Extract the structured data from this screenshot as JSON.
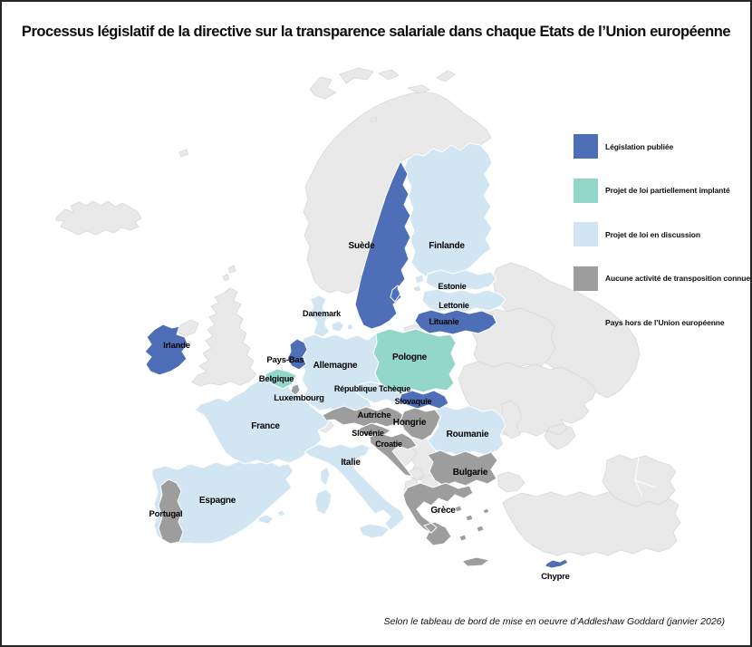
{
  "title": "Processus législatif de la directive sur la transparence salariale dans chaque Etats de l’Union européenne",
  "legend": {
    "items": [
      {
        "status": "published",
        "label": "Législation publiée",
        "color": "#4e6fb7"
      },
      {
        "status": "partial",
        "label": "Projet de loi partiellement implanté",
        "color": "#93d6ca"
      },
      {
        "status": "discussion",
        "label": "Projet de loi en discussion",
        "color": "#d2e5f3"
      },
      {
        "status": "none",
        "label": "Aucune activité de transposition connue",
        "color": "#9d9d9d"
      },
      {
        "status": "non_eu",
        "label": "Pays hors de l’Union européenne",
        "color": "#e9e9e9"
      }
    ]
  },
  "map": {
    "countries": [
      {
        "id": "espagne",
        "label": "Espagne",
        "status": "discussion"
      },
      {
        "id": "france",
        "label": "France",
        "status": "discussion"
      },
      {
        "id": "allemagne",
        "label": "Allemagne",
        "status": "discussion"
      },
      {
        "id": "italie",
        "label": "Italie",
        "status": "discussion"
      },
      {
        "id": "finlande",
        "label": "Finlande",
        "status": "discussion"
      },
      {
        "id": "danemark",
        "label": "Danemark",
        "status": "discussion"
      },
      {
        "id": "estonie",
        "label": "Estonie",
        "status": "discussion"
      },
      {
        "id": "lettonie",
        "label": "Lettonie",
        "status": "discussion"
      },
      {
        "id": "tcheque",
        "label": "République Tchèque",
        "status": "discussion"
      },
      {
        "id": "roumanie",
        "label": "Roumanie",
        "status": "discussion"
      },
      {
        "id": "pologne",
        "label": "Pologne",
        "status": "partial"
      },
      {
        "id": "belgique",
        "label": "Belgique",
        "status": "partial"
      },
      {
        "id": "portugal",
        "label": "Portugal",
        "status": "none"
      },
      {
        "id": "luxembourg",
        "label": "Luxembourg",
        "status": "none"
      },
      {
        "id": "autriche",
        "label": "Autriche",
        "status": "none"
      },
      {
        "id": "hongrie",
        "label": "Hongrie",
        "status": "none"
      },
      {
        "id": "slovenie",
        "label": "Slovénie",
        "status": "none"
      },
      {
        "id": "croatie",
        "label": "Croatie",
        "status": "none"
      },
      {
        "id": "bulgarie",
        "label": "Bulgarie",
        "status": "none"
      },
      {
        "id": "grece",
        "label": "Grèce",
        "status": "none"
      },
      {
        "id": "irlande",
        "label": "Irlande",
        "status": "published"
      },
      {
        "id": "pays_bas",
        "label": "Pays-Bas",
        "status": "published"
      },
      {
        "id": "suede",
        "label": "Suède",
        "status": "published"
      },
      {
        "id": "lituanie",
        "label": "Lituanie",
        "status": "published"
      },
      {
        "id": "slovaquie",
        "label": "Slovaquie",
        "status": "published"
      },
      {
        "id": "chypre",
        "label": "Chypre",
        "status": "published"
      }
    ]
  },
  "footer": {
    "source": "Selon le tableau de bord de mise en oeuvre d’Addleshaw Goddard (janvier 2026)"
  }
}
